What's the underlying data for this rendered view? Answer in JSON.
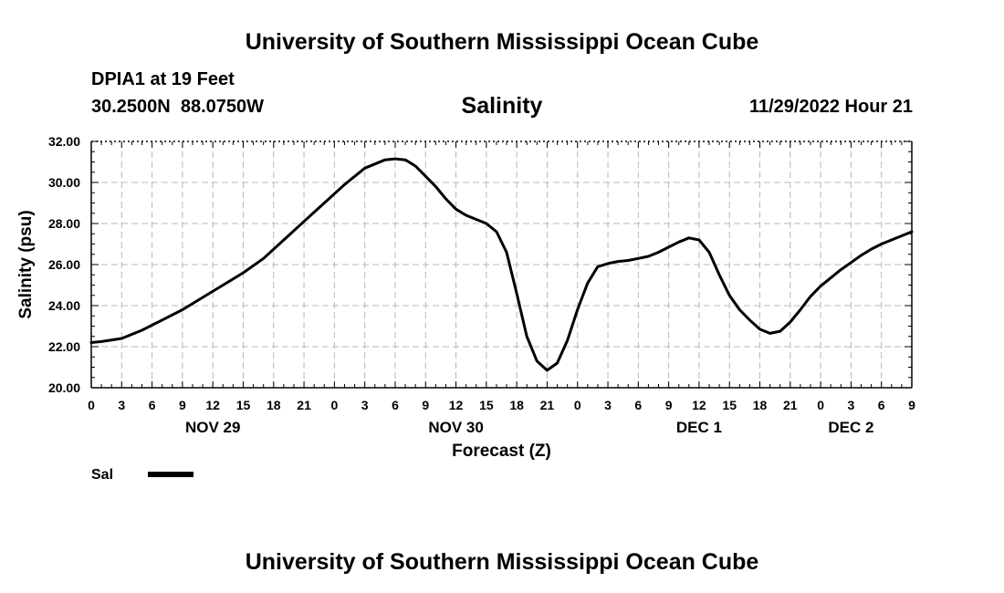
{
  "header": {
    "top_title": "University of Southern Mississippi Ocean Cube",
    "station": "DPIA1 at 19 Feet",
    "coordinates": "30.2500N  88.0750W",
    "variable": "Salinity",
    "issued": "11/29/2022 Hour 21",
    "bottom_title": "University of Southern Mississippi Ocean Cube"
  },
  "colors": {
    "line": "#000000",
    "grid": "#b8b8b8",
    "frame": "#000000"
  },
  "chart_data": {
    "type": "line",
    "title": "Salinity",
    "xlabel": "Forecast (Z)",
    "ylabel": "Salinity (psu)",
    "xlim": [
      0,
      81
    ],
    "ylim": [
      20,
      32
    ],
    "grid": true,
    "legend_position": "bottom-left",
    "y_ticks": [
      20,
      22,
      24,
      26,
      28,
      30,
      32
    ],
    "y_tick_labels": [
      "20.00",
      "22.00",
      "24.00",
      "26.00",
      "28.00",
      "30.00",
      "32.00"
    ],
    "x_ticks": [
      0,
      3,
      6,
      9,
      12,
      15,
      18,
      21,
      24,
      27,
      30,
      33,
      36,
      39,
      42,
      45,
      48,
      51,
      54,
      57,
      60,
      63,
      66,
      69,
      72,
      75,
      78,
      81
    ],
    "x_tick_labels": [
      "0",
      "3",
      "6",
      "9",
      "12",
      "15",
      "18",
      "21",
      "0",
      "3",
      "6",
      "9",
      "12",
      "15",
      "18",
      "21",
      "0",
      "3",
      "6",
      "9",
      "12",
      "15",
      "18",
      "21",
      "0",
      "3",
      "6",
      "9"
    ],
    "x_tick_labels_note": "",
    "date_labels": [
      {
        "label": "NOV 29",
        "x": 12
      },
      {
        "label": "NOV 30",
        "x": 36
      },
      {
        "label": "DEC 1",
        "x": 60
      },
      {
        "label": "DEC 2",
        "x": 75
      }
    ],
    "series": [
      {
        "name": "Sal",
        "x": [
          0,
          1,
          3,
          5,
          7,
          9,
          11,
          13,
          15,
          17,
          19,
          21,
          23,
          25,
          27,
          29,
          30,
          31,
          32,
          33,
          34,
          35,
          36,
          37,
          38,
          39,
          40,
          41,
          42,
          43,
          44,
          45,
          46,
          47,
          48,
          49,
          50,
          51,
          52,
          53,
          54,
          55,
          56,
          57,
          58,
          59,
          60,
          61,
          62,
          63,
          64,
          65,
          66,
          67,
          68,
          69,
          70,
          71,
          72,
          73,
          74,
          75,
          76,
          77,
          78,
          79,
          80,
          81
        ],
        "values": [
          22.2,
          22.25,
          22.4,
          22.8,
          23.3,
          23.8,
          24.4,
          25.0,
          25.6,
          26.3,
          27.2,
          28.1,
          29.0,
          29.9,
          30.7,
          31.1,
          31.15,
          31.1,
          30.8,
          30.3,
          29.8,
          29.2,
          28.7,
          28.4,
          28.2,
          28.0,
          27.6,
          26.6,
          24.6,
          22.5,
          21.3,
          20.85,
          21.2,
          22.3,
          23.8,
          25.1,
          25.9,
          26.05,
          26.15,
          26.2,
          26.3,
          26.4,
          26.6,
          26.85,
          27.1,
          27.3,
          27.2,
          26.6,
          25.5,
          24.5,
          23.8,
          23.3,
          22.85,
          22.65,
          22.75,
          23.2,
          23.8,
          24.45,
          24.95,
          25.35,
          25.75,
          26.1,
          26.45,
          26.75,
          27.0,
          27.2,
          27.4,
          27.6
        ]
      }
    ],
    "legend": [
      {
        "label": "Sal"
      }
    ]
  }
}
